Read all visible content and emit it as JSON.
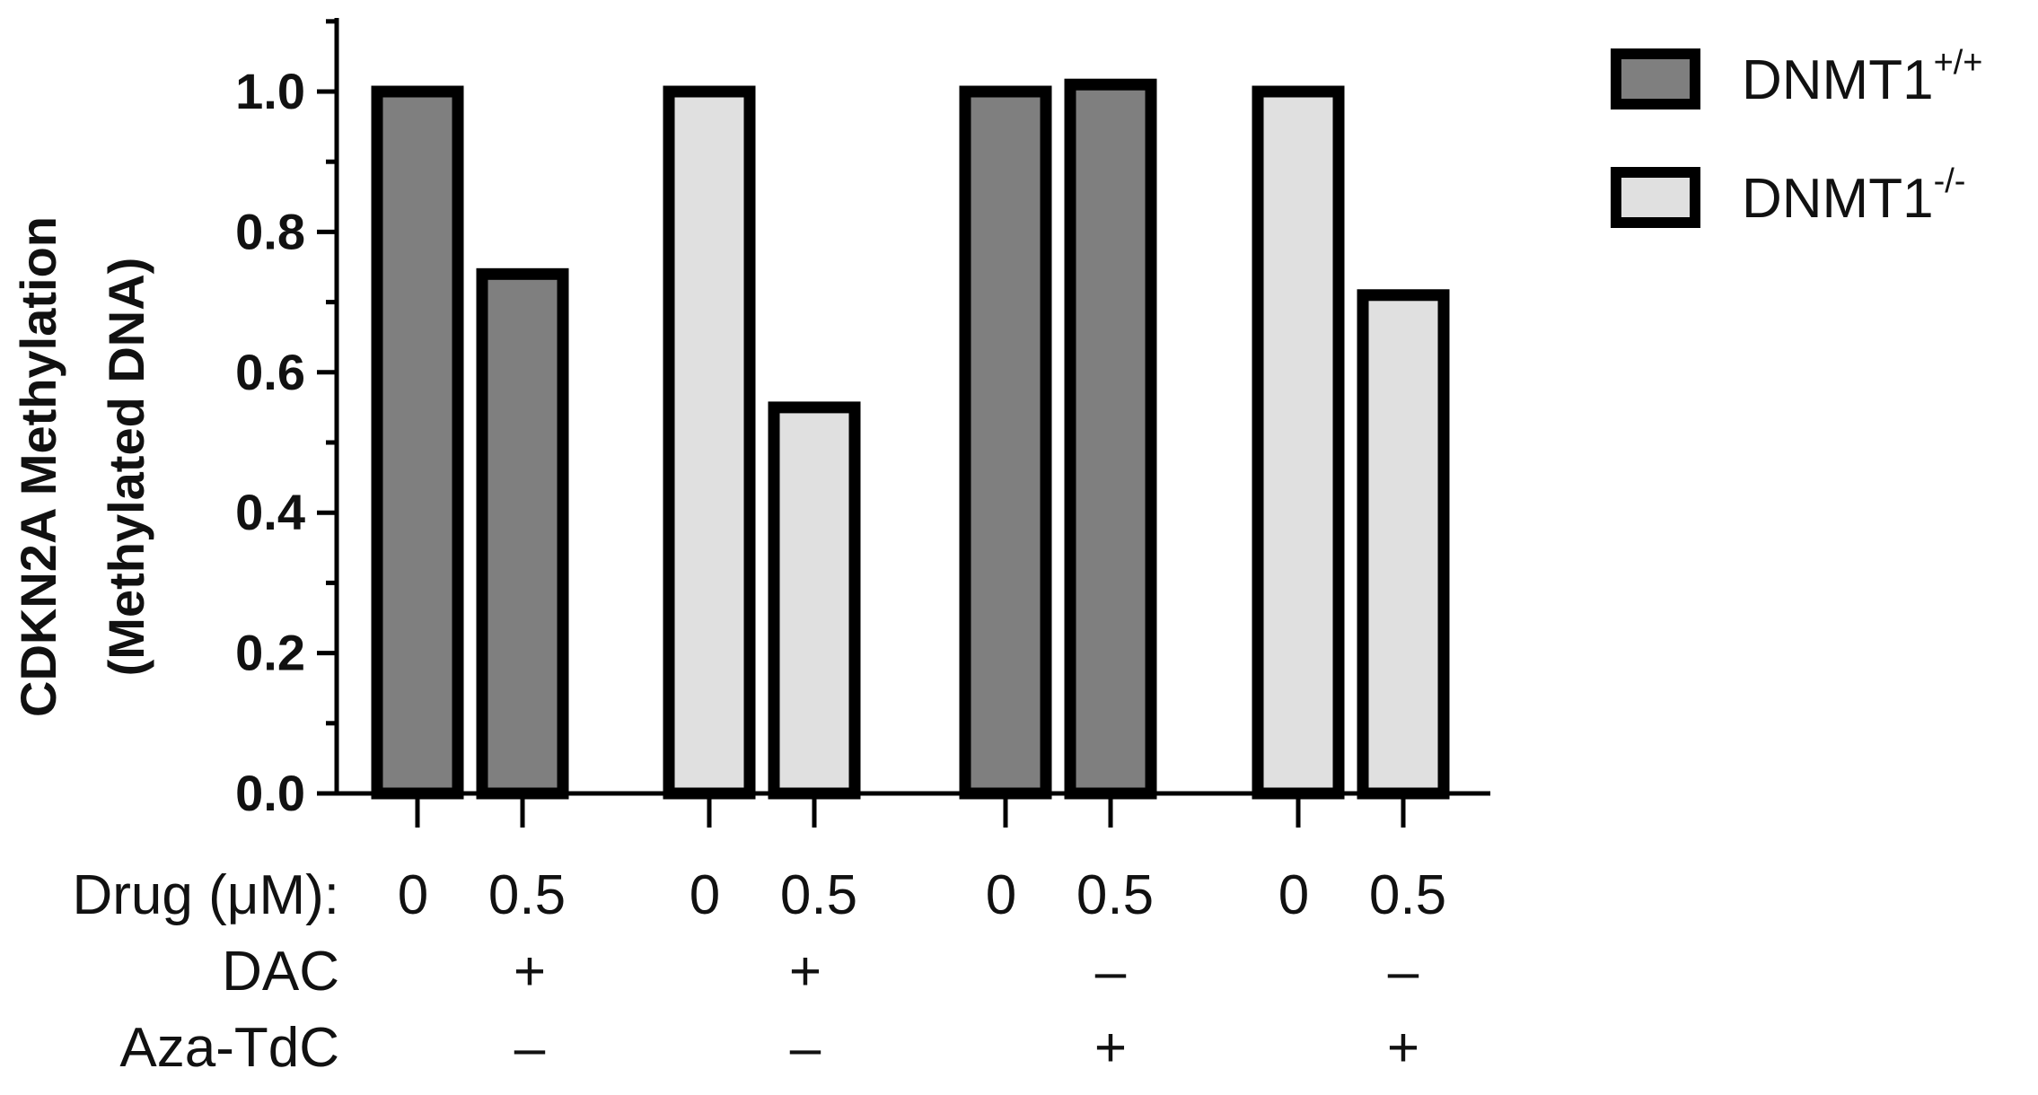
{
  "chart_data": {
    "type": "bar",
    "title": "",
    "ylabel_line1": "CDKN2A Methylation",
    "ylabel_line2": "(Methylated DNA)",
    "ylim": [
      0,
      1.1
    ],
    "yticks": [
      "0.0",
      "0.2",
      "0.4",
      "0.6",
      "0.8",
      "1.0"
    ],
    "grid": false,
    "legend_position": "top-right",
    "legend": [
      {
        "name": "DNMT1",
        "sup": "+/+",
        "color": "#7f7f7f"
      },
      {
        "name": "DNMT1",
        "sup": "-/-",
        "color": "#e0e0e0"
      }
    ],
    "bars": [
      {
        "value": 1.0,
        "dose": "0",
        "series": 0
      },
      {
        "value": 0.74,
        "dose": "0.5",
        "series": 0
      },
      {
        "value": 1.0,
        "dose": "0",
        "series": 1
      },
      {
        "value": 0.55,
        "dose": "0.5",
        "series": 1
      },
      {
        "value": 1.0,
        "dose": "0",
        "series": 0
      },
      {
        "value": 1.01,
        "dose": "0.5",
        "series": 0
      },
      {
        "value": 1.0,
        "dose": "0",
        "series": 1
      },
      {
        "value": 0.71,
        "dose": "0.5",
        "series": 1
      }
    ],
    "row_labels": {
      "drug": "Drug (μM):",
      "dac": "DAC",
      "aza": "Aza-TdC"
    },
    "groups": [
      {
        "dac": "+",
        "aza": "–"
      },
      {
        "dac": "+",
        "aza": "–"
      },
      {
        "dac": "–",
        "aza": "+"
      },
      {
        "dac": "–",
        "aza": "+"
      }
    ]
  }
}
